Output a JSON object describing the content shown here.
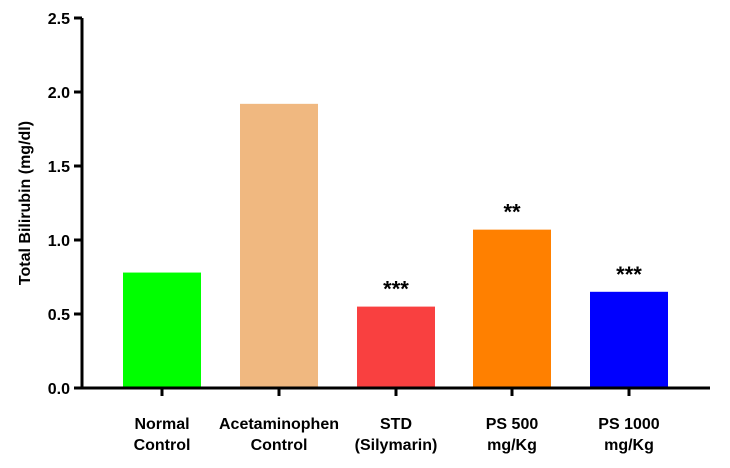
{
  "chart_data": {
    "type": "bar",
    "ylabel": "Total Bilirubin (mg/dl)",
    "xlabel": "",
    "ylim": [
      0,
      2.5
    ],
    "yticks": [
      "0.0",
      "0.5",
      "1.0",
      "1.5",
      "2.0",
      "2.5"
    ],
    "categories": [
      [
        "Normal",
        "Control"
      ],
      [
        "Acetaminophen",
        "Control"
      ],
      [
        "STD",
        "(Silymarin)"
      ],
      [
        "PS 500",
        "mg/Kg"
      ],
      [
        "PS 1000",
        "mg/Kg"
      ]
    ],
    "values": [
      0.78,
      1.92,
      0.55,
      1.07,
      0.65
    ],
    "colors": [
      "#00ff00",
      "#f0b880",
      "#f94040",
      "#ff8000",
      "#0000ff"
    ],
    "significance": [
      "",
      "",
      "***",
      "**",
      "***"
    ],
    "grid": false,
    "legend": "none"
  }
}
